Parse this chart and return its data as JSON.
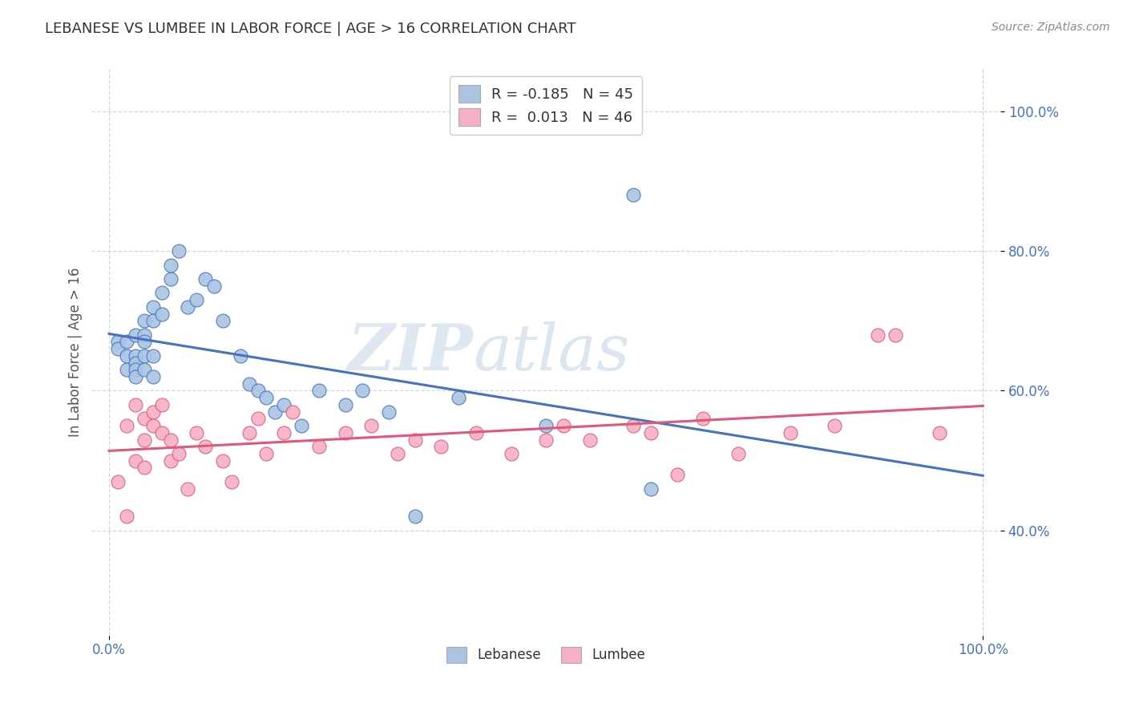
{
  "title": "LEBANESE VS LUMBEE IN LABOR FORCE | AGE > 16 CORRELATION CHART",
  "source_text": "Source: ZipAtlas.com",
  "ylabel": "In Labor Force | Age > 16",
  "xlim": [
    -0.02,
    1.02
  ],
  "ylim": [
    0.25,
    1.06
  ],
  "ytick_values": [
    0.4,
    0.6,
    0.8,
    1.0
  ],
  "ytick_labels": [
    "40.0%",
    "60.0%",
    "80.0%",
    "100.0%"
  ],
  "xtick_values": [
    0.0,
    1.0
  ],
  "xtick_labels": [
    "0.0%",
    "100.0%"
  ],
  "legend_label1": "Lebanese",
  "legend_label2": "Lumbee",
  "R1": "-0.185",
  "N1": "45",
  "R2": "0.013",
  "N2": "46",
  "color_lebanese": "#aac4e2",
  "color_lumbee": "#f5b0c5",
  "line_color_lebanese": "#4472c4",
  "line_color_lumbee": "#e05878",
  "watermark_zip": "ZIP",
  "watermark_atlas": "atlas",
  "background_color": "#ffffff",
  "grid_color": "#c8d8e8",
  "lebanese_x": [
    0.01,
    0.01,
    0.02,
    0.02,
    0.02,
    0.03,
    0.03,
    0.03,
    0.03,
    0.03,
    0.04,
    0.04,
    0.04,
    0.04,
    0.04,
    0.05,
    0.05,
    0.05,
    0.05,
    0.06,
    0.06,
    0.07,
    0.07,
    0.08,
    0.09,
    0.1,
    0.11,
    0.12,
    0.13,
    0.15,
    0.16,
    0.17,
    0.18,
    0.19,
    0.2,
    0.22,
    0.24,
    0.27,
    0.29,
    0.32,
    0.35,
    0.4,
    0.5,
    0.6,
    0.62
  ],
  "lebanese_y": [
    0.67,
    0.66,
    0.65,
    0.67,
    0.63,
    0.68,
    0.65,
    0.64,
    0.63,
    0.62,
    0.7,
    0.68,
    0.65,
    0.67,
    0.63,
    0.72,
    0.7,
    0.65,
    0.62,
    0.74,
    0.71,
    0.78,
    0.76,
    0.8,
    0.72,
    0.73,
    0.76,
    0.75,
    0.7,
    0.65,
    0.61,
    0.6,
    0.59,
    0.57,
    0.58,
    0.55,
    0.6,
    0.58,
    0.6,
    0.57,
    0.42,
    0.59,
    0.55,
    0.88,
    0.46
  ],
  "lumbee_x": [
    0.01,
    0.02,
    0.02,
    0.03,
    0.03,
    0.04,
    0.04,
    0.04,
    0.05,
    0.05,
    0.06,
    0.06,
    0.07,
    0.07,
    0.08,
    0.09,
    0.1,
    0.11,
    0.13,
    0.14,
    0.16,
    0.17,
    0.18,
    0.2,
    0.21,
    0.24,
    0.27,
    0.3,
    0.33,
    0.35,
    0.38,
    0.42,
    0.46,
    0.5,
    0.52,
    0.55,
    0.6,
    0.62,
    0.65,
    0.68,
    0.72,
    0.78,
    0.83,
    0.88,
    0.9,
    0.95
  ],
  "lumbee_y": [
    0.47,
    0.42,
    0.55,
    0.58,
    0.5,
    0.53,
    0.56,
    0.49,
    0.57,
    0.55,
    0.54,
    0.58,
    0.53,
    0.5,
    0.51,
    0.46,
    0.54,
    0.52,
    0.5,
    0.47,
    0.54,
    0.56,
    0.51,
    0.54,
    0.57,
    0.52,
    0.54,
    0.55,
    0.51,
    0.53,
    0.52,
    0.54,
    0.51,
    0.53,
    0.55,
    0.53,
    0.55,
    0.54,
    0.48,
    0.56,
    0.51,
    0.54,
    0.55,
    0.68,
    0.68,
    0.54
  ]
}
